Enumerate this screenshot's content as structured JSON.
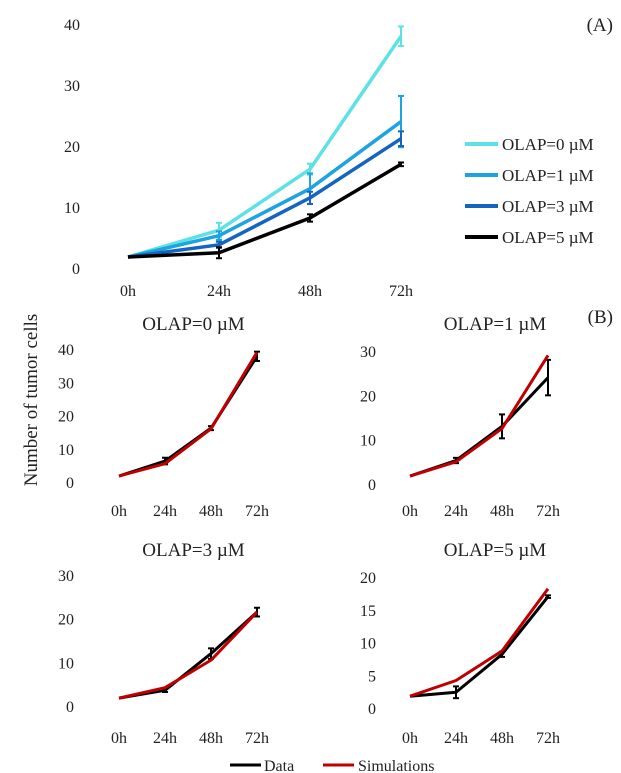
{
  "figure": {
    "shared_ylabel": "Number of tumor cells",
    "panel_labels": [
      "(A)",
      "(B)"
    ],
    "bottom_legend": [
      {
        "name": "Data",
        "color": "#000000"
      },
      {
        "name": "Simulations",
        "color": "#c00000"
      }
    ]
  },
  "chart_data": [
    {
      "type": "line",
      "panel": "(A)",
      "title": "",
      "xlabel": "",
      "ylabel": "Number of tumor cells",
      "categories": [
        "0h",
        "24h",
        "48h",
        "72h"
      ],
      "ylim": [
        0,
        40
      ],
      "yticks": [
        0,
        10,
        20,
        30,
        40
      ],
      "grid": false,
      "legend_position": "right",
      "series": [
        {
          "name": "OLAP=0 µM",
          "color": "#5ce1e6",
          "values": [
            1.8,
            6.2,
            16.2,
            38.0
          ],
          "error": [
            0,
            1.2,
            0.9,
            1.6
          ]
        },
        {
          "name": "OLAP=1 µM",
          "color": "#1ca3e0",
          "values": [
            1.8,
            5.3,
            13.0,
            24.0
          ],
          "error": [
            0,
            0.7,
            2.5,
            4.2
          ]
        },
        {
          "name": "OLAP=3 µM",
          "color": "#1565c0",
          "values": [
            1.8,
            3.8,
            11.5,
            21.2
          ],
          "error": [
            0,
            0.5,
            1.0,
            1.2
          ]
        },
        {
          "name": "OLAP=5 µM",
          "color": "#000000",
          "values": [
            1.8,
            2.5,
            8.2,
            17.0
          ],
          "error": [
            0,
            0.9,
            0.6,
            0.3
          ]
        }
      ]
    },
    {
      "type": "line",
      "panel": "(B)",
      "title": "OLAP=0 µM",
      "categories": [
        "0h",
        "24h",
        "48h",
        "72h"
      ],
      "ylim": [
        0,
        40
      ],
      "yticks": [
        0,
        10,
        20,
        30,
        40
      ],
      "series": [
        {
          "name": "Data",
          "color": "#000000",
          "values": [
            1.8,
            6.3,
            16.2,
            37.8
          ],
          "error": [
            0,
            1.0,
            0.6,
            1.4
          ]
        },
        {
          "name": "Simulations",
          "color": "#c00000",
          "values": [
            1.8,
            5.5,
            16.0,
            39.0
          ]
        }
      ]
    },
    {
      "type": "line",
      "panel": "(B)",
      "title": "OLAP=1 µM",
      "categories": [
        "0h",
        "24h",
        "48h",
        "72h"
      ],
      "ylim": [
        0,
        30
      ],
      "yticks": [
        0,
        10,
        20,
        30
      ],
      "series": [
        {
          "name": "Data",
          "color": "#000000",
          "values": [
            1.8,
            5.3,
            13.0,
            24.0
          ],
          "error": [
            0,
            0.6,
            2.7,
            4.0
          ]
        },
        {
          "name": "Simulations",
          "color": "#c00000",
          "values": [
            1.8,
            5.0,
            12.5,
            29.0
          ]
        }
      ]
    },
    {
      "type": "line",
      "panel": "(B)",
      "title": "OLAP=3 µM",
      "categories": [
        "0h",
        "24h",
        "48h",
        "72h"
      ],
      "ylim": [
        0,
        30
      ],
      "yticks": [
        0,
        10,
        20,
        30
      ],
      "series": [
        {
          "name": "Data",
          "color": "#000000",
          "values": [
            1.8,
            3.6,
            12.0,
            21.5
          ],
          "error": [
            0,
            0.4,
            1.2,
            1.0
          ]
        },
        {
          "name": "Simulations",
          "color": "#c00000",
          "values": [
            1.8,
            4.2,
            10.5,
            21.5
          ]
        }
      ]
    },
    {
      "type": "line",
      "panel": "(B)",
      "title": "OLAP=5 µM",
      "categories": [
        "0h",
        "24h",
        "48h",
        "72h"
      ],
      "ylim": [
        0,
        20
      ],
      "yticks": [
        0,
        5,
        10,
        15,
        20
      ],
      "series": [
        {
          "name": "Data",
          "color": "#000000",
          "values": [
            1.8,
            2.4,
            8.2,
            17.0
          ],
          "error": [
            0,
            0.9,
            0.4,
            0.2
          ]
        },
        {
          "name": "Simulations",
          "color": "#c00000",
          "values": [
            1.8,
            4.2,
            8.7,
            18.2
          ]
        }
      ]
    }
  ]
}
